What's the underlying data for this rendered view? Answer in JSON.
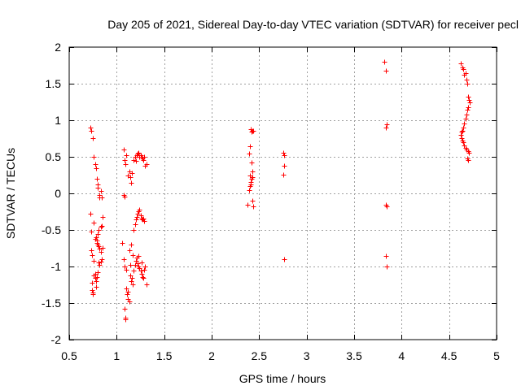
{
  "chart_data": {
    "type": "scatter",
    "title": "Day 205 of 2021, Sidereal Day-to-day VTEC variation (SDTVAR) for receiver pecl",
    "xlabel": "GPS time / hours",
    "ylabel": "SDTVAR / TECUs",
    "xlim": [
      0.5,
      5
    ],
    "ylim": [
      -2,
      2
    ],
    "xticks": [
      0.5,
      1,
      1.5,
      2,
      2.5,
      3,
      3.5,
      4,
      4.5,
      5
    ],
    "yticks": [
      -2,
      -1.5,
      -1,
      -0.5,
      0,
      0.5,
      1,
      1.5,
      2
    ],
    "xtick_labels": [
      "0.5",
      "1",
      "1.5",
      "2",
      "2.5",
      "3",
      "3.5",
      "4",
      "4.5",
      "5"
    ],
    "ytick_labels": [
      "-2",
      "-1.5",
      "-1",
      "-0.5",
      "0",
      "0.5",
      "1",
      "1.5",
      "2"
    ],
    "grid": true,
    "marker": "+",
    "color": "#ff0000",
    "series": [
      {
        "name": "SDTVAR",
        "points": [
          [
            0.72,
            0.9
          ],
          [
            0.73,
            0.86
          ],
          [
            0.75,
            0.76
          ],
          [
            0.76,
            0.5
          ],
          [
            0.77,
            0.4
          ],
          [
            0.78,
            0.34
          ],
          [
            0.79,
            0.2
          ],
          [
            0.8,
            0.12
          ],
          [
            0.8,
            0.08
          ],
          [
            0.82,
            -0.02
          ],
          [
            0.82,
            -0.06
          ],
          [
            0.83,
            0.03
          ],
          [
            0.84,
            -0.05
          ],
          [
            0.72,
            -0.28
          ],
          [
            0.73,
            -0.52
          ],
          [
            0.73,
            -0.78
          ],
          [
            0.74,
            -0.84
          ],
          [
            0.74,
            -1.22
          ],
          [
            0.74,
            -1.32
          ],
          [
            0.75,
            -1.36
          ],
          [
            0.75,
            -1.38
          ],
          [
            0.76,
            -0.4
          ],
          [
            0.76,
            -0.92
          ],
          [
            0.77,
            -1.1
          ],
          [
            0.77,
            -1.16
          ],
          [
            0.78,
            -1.2
          ],
          [
            0.78,
            -1.28
          ],
          [
            0.78,
            -0.6
          ],
          [
            0.79,
            -0.64
          ],
          [
            0.79,
            -0.68
          ],
          [
            0.8,
            -0.56
          ],
          [
            0.8,
            -0.7
          ],
          [
            0.81,
            -0.5
          ],
          [
            0.81,
            -0.94
          ],
          [
            0.82,
            -0.98
          ],
          [
            0.82,
            -0.76
          ],
          [
            0.83,
            -0.46
          ],
          [
            0.83,
            -0.8
          ],
          [
            0.84,
            -0.44
          ],
          [
            0.84,
            -0.9
          ],
          [
            0.85,
            -0.32
          ],
          [
            0.85,
            -0.74
          ],
          [
            0.76,
            -1.12
          ],
          [
            0.79,
            -1.14
          ],
          [
            0.8,
            -1.08
          ],
          [
            0.77,
            -0.62
          ],
          [
            0.81,
            -0.72
          ],
          [
            0.83,
            -0.93
          ],
          [
            1.07,
            0.6
          ],
          [
            1.08,
            0.45
          ],
          [
            1.09,
            0.4
          ],
          [
            1.1,
            0.52
          ],
          [
            1.12,
            0.25
          ],
          [
            1.13,
            0.3
          ],
          [
            1.14,
            0.22
          ],
          [
            1.15,
            0.14
          ],
          [
            1.16,
            0.28
          ],
          [
            1.18,
            0.46
          ],
          [
            1.19,
            0.5
          ],
          [
            1.2,
            0.44
          ],
          [
            1.21,
            0.52
          ],
          [
            1.22,
            0.54
          ],
          [
            1.23,
            0.56
          ],
          [
            1.24,
            0.5
          ],
          [
            1.25,
            0.52
          ],
          [
            1.26,
            0.5
          ],
          [
            1.27,
            0.48
          ],
          [
            1.28,
            0.46
          ],
          [
            1.29,
            0.5
          ],
          [
            1.3,
            0.38
          ],
          [
            1.31,
            0.4
          ],
          [
            1.07,
            -0.02
          ],
          [
            1.08,
            -0.04
          ],
          [
            1.06,
            -0.68
          ],
          [
            1.07,
            -0.9
          ],
          [
            1.08,
            -1.0
          ],
          [
            1.08,
            -1.58
          ],
          [
            1.09,
            -1.7
          ],
          [
            1.09,
            -1.72
          ],
          [
            1.1,
            -1.04
          ],
          [
            1.1,
            -1.3
          ],
          [
            1.11,
            -1.38
          ],
          [
            1.12,
            -1.44
          ],
          [
            1.13,
            -1.48
          ],
          [
            1.13,
            -0.78
          ],
          [
            1.14,
            -1.12
          ],
          [
            1.15,
            -1.2
          ],
          [
            1.15,
            -0.7
          ],
          [
            1.16,
            -1.16
          ],
          [
            1.17,
            -1.24
          ],
          [
            1.18,
            -0.5
          ],
          [
            1.18,
            -1.06
          ],
          [
            1.19,
            -0.42
          ],
          [
            1.2,
            -0.36
          ],
          [
            1.2,
            -0.92
          ],
          [
            1.21,
            -0.32
          ],
          [
            1.21,
            -0.88
          ],
          [
            1.22,
            -0.28
          ],
          [
            1.22,
            -0.96
          ],
          [
            1.23,
            -0.24
          ],
          [
            1.23,
            -1.0
          ],
          [
            1.24,
            -0.22
          ],
          [
            1.24,
            -1.02
          ],
          [
            1.25,
            -0.3
          ],
          [
            1.25,
            -1.06
          ],
          [
            1.26,
            -0.34
          ],
          [
            1.26,
            -1.1
          ],
          [
            1.27,
            -0.36
          ],
          [
            1.27,
            -1.14
          ],
          [
            1.28,
            -0.34
          ],
          [
            1.28,
            -1.16
          ],
          [
            1.29,
            -0.38
          ],
          [
            1.29,
            -1.04
          ],
          [
            1.3,
            -1.0
          ],
          [
            1.31,
            -1.24
          ],
          [
            1.12,
            -1.34
          ],
          [
            1.14,
            -0.98
          ],
          [
            1.17,
            -0.84
          ],
          [
            1.19,
            -0.98
          ],
          [
            1.23,
            -0.86
          ],
          [
            1.26,
            -0.94
          ],
          [
            2.38,
            -0.16
          ],
          [
            2.39,
            0.04
          ],
          [
            2.39,
            0.55
          ],
          [
            2.4,
            0.24
          ],
          [
            2.4,
            0.1
          ],
          [
            2.41,
            0.16
          ],
          [
            2.41,
            0.88
          ],
          [
            2.42,
            0.84
          ],
          [
            2.42,
            0.2
          ],
          [
            2.43,
            0.3
          ],
          [
            2.43,
            0.86
          ],
          [
            2.43,
            -0.1
          ],
          [
            2.44,
            0.86
          ],
          [
            2.44,
            -0.18
          ],
          [
            2.4,
            0.65
          ],
          [
            2.41,
            0.12
          ],
          [
            2.42,
            0.42
          ],
          [
            2.43,
            0.22
          ],
          [
            2.75,
            0.56
          ],
          [
            2.76,
            0.52
          ],
          [
            2.76,
            0.38
          ],
          [
            2.75,
            0.26
          ],
          [
            2.76,
            -0.9
          ],
          [
            3.82,
            1.8
          ],
          [
            3.83,
            1.68
          ],
          [
            3.83,
            0.9
          ],
          [
            3.84,
            0.94
          ],
          [
            3.83,
            -0.16
          ],
          [
            3.84,
            -0.18
          ],
          [
            3.83,
            -0.86
          ],
          [
            3.84,
            -1.0
          ],
          [
            4.62,
            1.78
          ],
          [
            4.64,
            1.72
          ],
          [
            4.65,
            1.7
          ],
          [
            4.66,
            1.62
          ],
          [
            4.67,
            1.64
          ],
          [
            4.68,
            1.56
          ],
          [
            4.69,
            1.5
          ],
          [
            4.7,
            1.32
          ],
          [
            4.71,
            1.28
          ],
          [
            4.72,
            1.24
          ],
          [
            4.7,
            1.18
          ],
          [
            4.69,
            1.14
          ],
          [
            4.68,
            1.08
          ],
          [
            4.67,
            1.02
          ],
          [
            4.66,
            0.96
          ],
          [
            4.65,
            0.9
          ],
          [
            4.64,
            0.86
          ],
          [
            4.63,
            0.84
          ],
          [
            4.62,
            0.8
          ],
          [
            4.63,
            0.76
          ],
          [
            4.64,
            0.72
          ],
          [
            4.65,
            0.7
          ],
          [
            4.66,
            0.66
          ],
          [
            4.67,
            0.62
          ],
          [
            4.68,
            0.6
          ],
          [
            4.7,
            0.58
          ],
          [
            4.71,
            0.56
          ],
          [
            4.69,
            0.48
          ],
          [
            4.7,
            0.46
          ]
        ]
      }
    ]
  }
}
